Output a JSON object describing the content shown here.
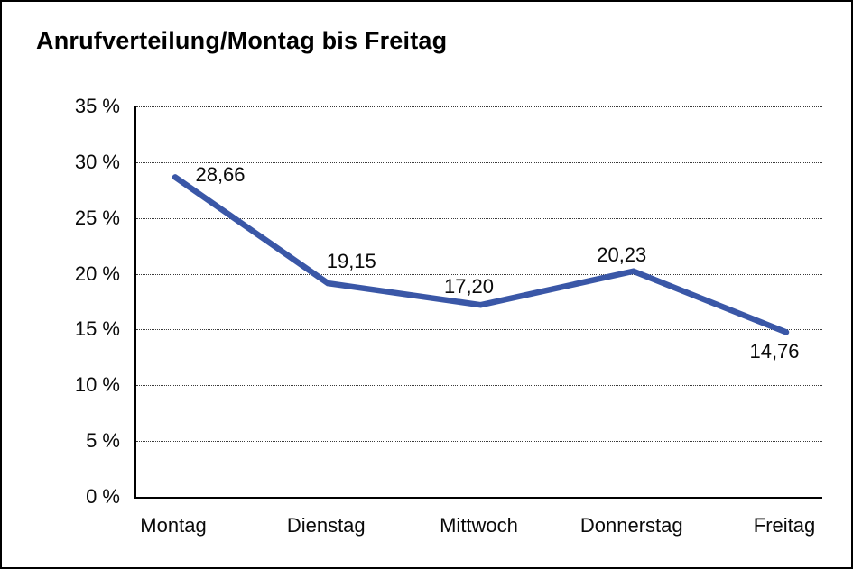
{
  "header": {
    "title": "Anrufverteilung/Montag bis Freitag"
  },
  "colors": {
    "line": "#3A57A7",
    "axis": "#000000",
    "grid": "#3a3a3a",
    "text": "#0a0a0a",
    "background": "#ffffff"
  },
  "chart_data": {
    "type": "line",
    "title": "Anrufverteilung/Montag bis Freitag",
    "categories": [
      "Montag",
      "Dienstag",
      "Mittwoch",
      "Donnerstag",
      "Freitag"
    ],
    "values": [
      28.66,
      19.15,
      17.2,
      20.23,
      14.76
    ],
    "point_labels": [
      "28,66",
      "19,15",
      "17,20",
      "20,23",
      "14,76"
    ],
    "xlabel": "",
    "ylabel": "",
    "ylim": [
      0,
      35
    ],
    "yticks": [
      {
        "value": 35,
        "label": "35 %"
      },
      {
        "value": 30,
        "label": "30 %"
      },
      {
        "value": 25,
        "label": "25 %"
      },
      {
        "value": 20,
        "label": "20 %"
      },
      {
        "value": 15,
        "label": "15 %"
      },
      {
        "value": 10,
        "label": "10 %"
      },
      {
        "value": 5,
        "label": "5 %"
      },
      {
        "value": 0,
        "label": "0 %"
      }
    ],
    "grid": "horizontal-dotted",
    "legend": "none",
    "line_color": "#3A57A7"
  }
}
